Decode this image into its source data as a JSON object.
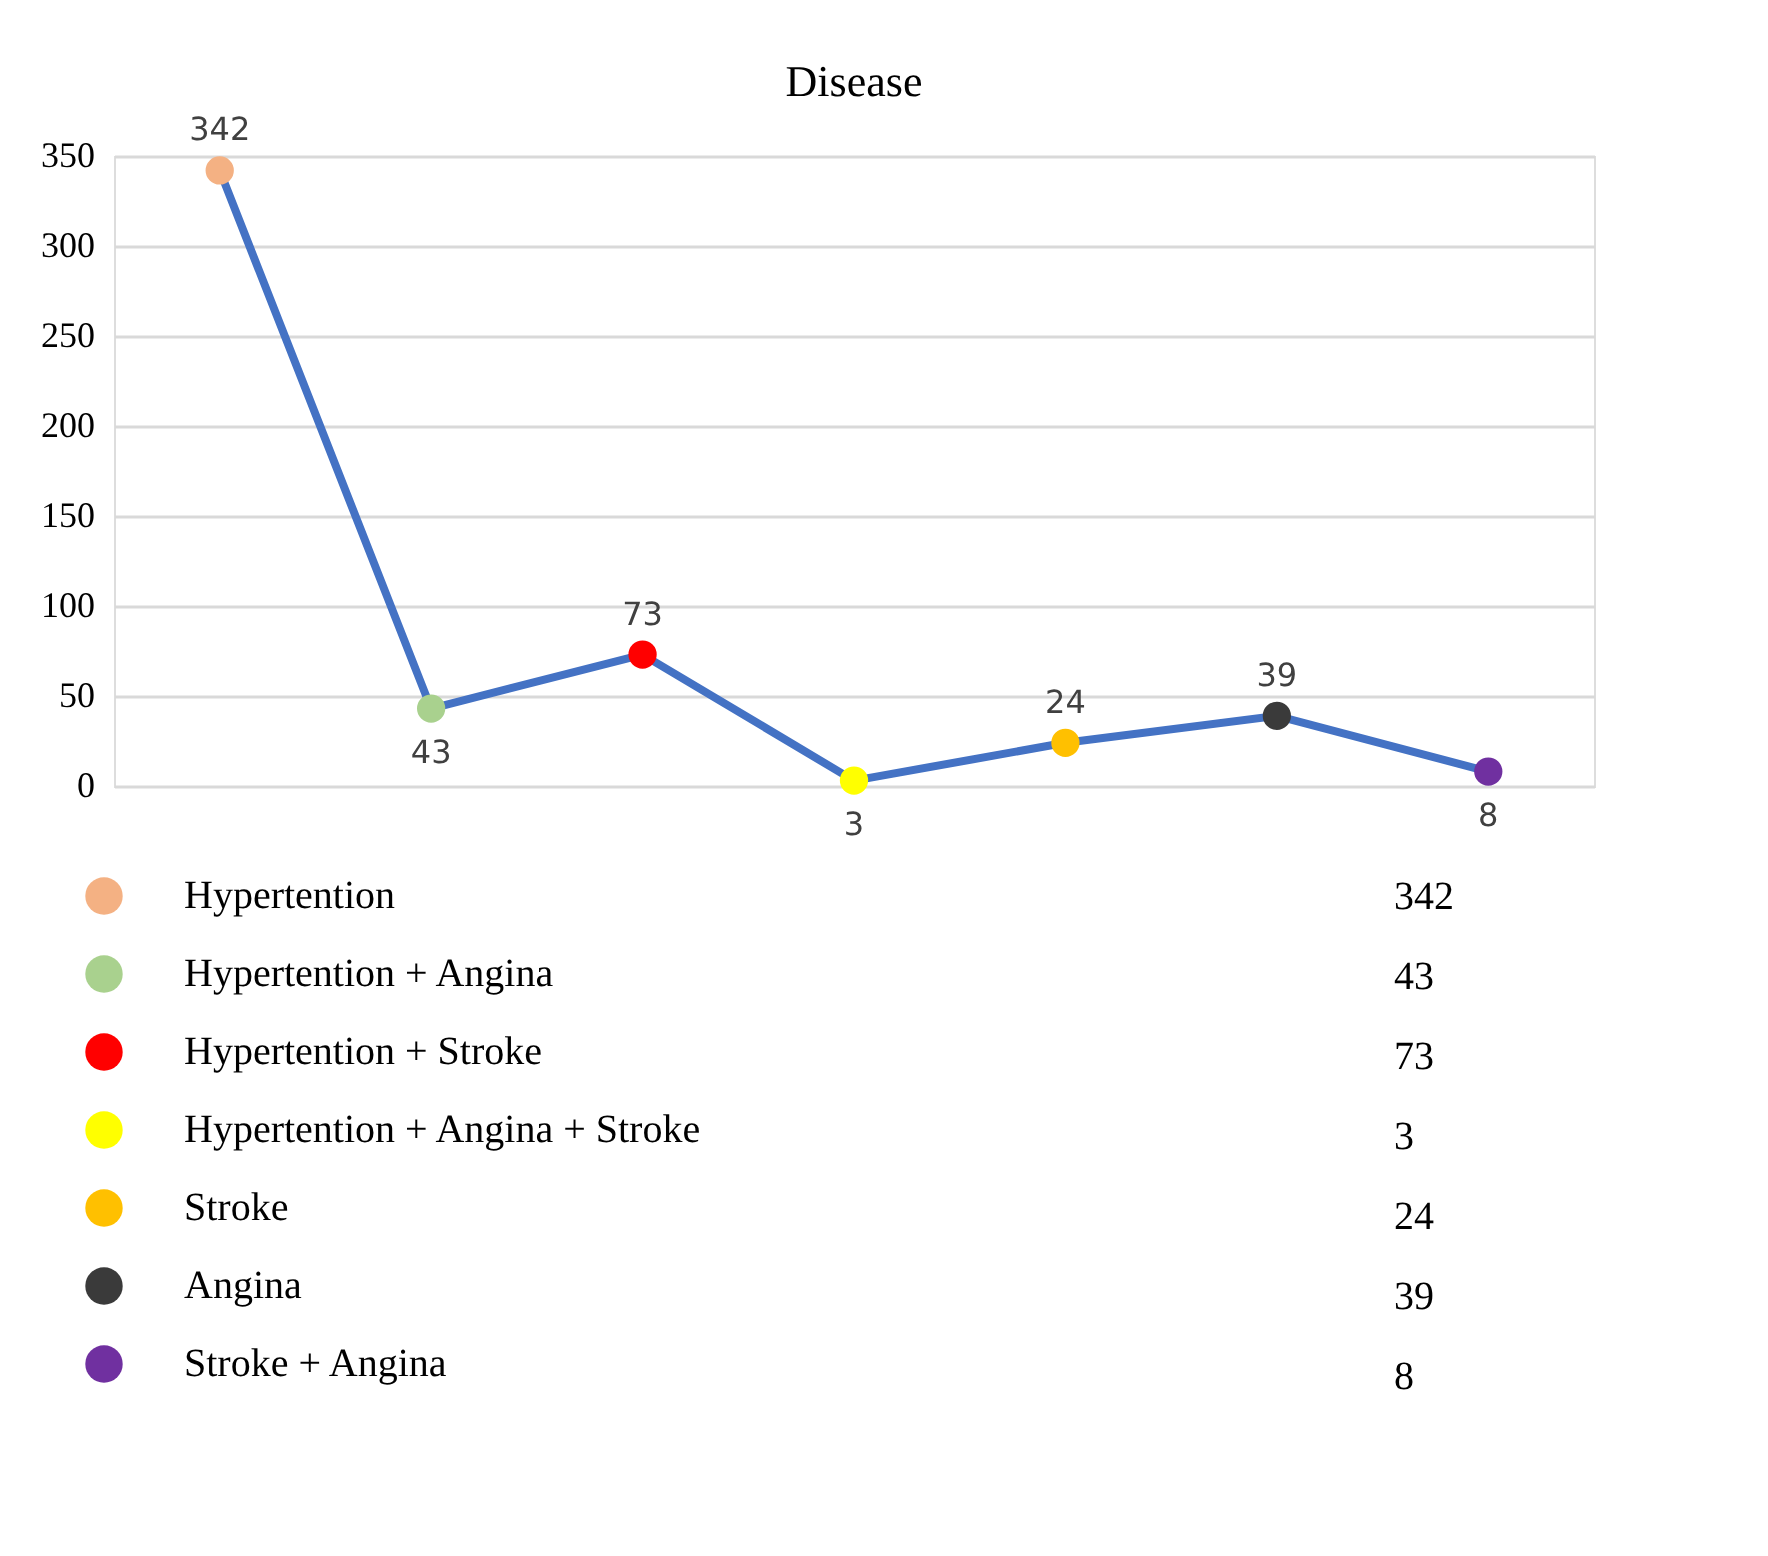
{
  "chart_data": {
    "type": "line",
    "title": "Disease",
    "categories": [
      null,
      null,
      null,
      null,
      null,
      null,
      null
    ],
    "series": [
      {
        "color": "#4472c4",
        "values": [
          342,
          43,
          73,
          3,
          24,
          39,
          8
        ],
        "marker": "none"
      },
      {
        "type": "scatter",
        "name": "Hypertention",
        "color": "#f4b183",
        "values": [
          342,
          null,
          null,
          null,
          null,
          null,
          null
        ],
        "value_labels": [
          "342",
          null,
          null,
          null,
          null,
          null,
          null
        ]
      },
      {
        "type": "scatter",
        "name": "Hypertention + Angina",
        "color": "#a9d18e",
        "values": [
          null,
          43,
          null,
          null,
          null,
          null,
          null
        ],
        "value_labels": [
          null,
          "43",
          null,
          null,
          null,
          null,
          null
        ]
      },
      {
        "type": "scatter",
        "name": "Hypertention + Stroke",
        "color": "#ff0000",
        "values": [
          null,
          null,
          73,
          null,
          null,
          null,
          null
        ],
        "value_labels": [
          null,
          null,
          "73",
          null,
          null,
          null,
          null
        ]
      },
      {
        "type": "scatter",
        "name": "Hypertention + Angina + Stroke",
        "color": "#ffff00",
        "values": [
          null,
          null,
          null,
          3,
          null,
          null,
          null
        ],
        "value_labels": [
          null,
          null,
          null,
          "3",
          null,
          null,
          null
        ]
      },
      {
        "type": "scatter",
        "name": "Stroke",
        "color": "#ffc000",
        "values": [
          null,
          null,
          null,
          null,
          24,
          null,
          null
        ],
        "value_labels": [
          null,
          null,
          null,
          null,
          "24",
          null,
          null
        ]
      },
      {
        "type": "scatter",
        "name": "Angina",
        "color": "#3a3a3a",
        "values": [
          null,
          null,
          null,
          null,
          null,
          39,
          null
        ],
        "value_labels": [
          null,
          null,
          null,
          null,
          null,
          "39",
          null
        ]
      },
      {
        "type": "scatter",
        "name": "Stroke + Angina",
        "color": "#7030a0",
        "values": [
          null,
          null,
          null,
          null,
          null,
          null,
          8
        ],
        "value_labels": [
          null,
          null,
          null,
          null,
          null,
          null,
          "8"
        ]
      }
    ],
    "ylim": [
      0,
      350
    ],
    "yticks": [
      0,
      50,
      100,
      150,
      200,
      250,
      300,
      350
    ],
    "annotations": [
      "342",
      "43",
      "73",
      "3",
      "24",
      "39",
      "8"
    ],
    "grid": "y",
    "tick_labels": "y",
    "marker": "circle",
    "line_style": "solid",
    "legend": "bottom"
  }
}
